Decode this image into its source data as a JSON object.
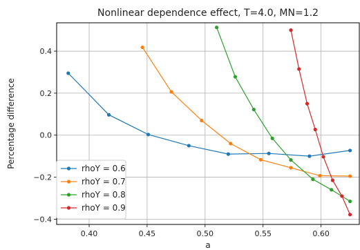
{
  "chart_data": {
    "type": "line",
    "title": "Nonlinear dependence effect, T=4.0, MN=1.2",
    "xlabel": "a",
    "ylabel": "Percentage difference",
    "xlim": [
      0.372,
      0.633
    ],
    "ylim": [
      -0.425,
      0.535
    ],
    "xticks": [
      0.4,
      0.45,
      0.5,
      0.55,
      0.6
    ],
    "xtick_labels": [
      "0.40",
      "0.45",
      "0.50",
      "0.55",
      "0.60"
    ],
    "yticks": [
      -0.4,
      -0.2,
      0.0,
      0.2,
      0.4
    ],
    "ytick_labels": [
      "−0.4",
      "−0.2",
      "0.0",
      "0.2",
      "0.4"
    ],
    "grid": true,
    "legend_position": "lower-left",
    "series": [
      {
        "name": "rhoY = 0.6",
        "color": "#1f77b4",
        "x": [
          0.382,
          0.417,
          0.451,
          0.486,
          0.52,
          0.555,
          0.59,
          0.625
        ],
        "y": [
          0.295,
          0.097,
          0.003,
          -0.05,
          -0.09,
          -0.087,
          -0.1,
          -0.073
        ]
      },
      {
        "name": "rhoY = 0.7",
        "color": "#ff7f0e",
        "x": [
          0.446,
          0.471,
          0.497,
          0.522,
          0.548,
          0.574,
          0.599,
          0.625
        ],
        "y": [
          0.418,
          0.206,
          0.07,
          -0.04,
          -0.117,
          -0.155,
          -0.193,
          -0.195
        ]
      },
      {
        "name": "rhoY = 0.8",
        "color": "#2ca02c",
        "x": [
          0.51,
          0.526,
          0.542,
          0.558,
          0.574,
          0.593,
          0.609,
          0.625
        ],
        "y": [
          0.513,
          0.278,
          0.122,
          -0.015,
          -0.118,
          -0.21,
          -0.26,
          -0.315
        ]
      },
      {
        "name": "rhoY = 0.9",
        "color": "#d62728",
        "x": [
          0.574,
          0.581,
          0.588,
          0.595,
          0.602,
          0.61,
          0.618,
          0.625
        ],
        "y": [
          0.5,
          0.315,
          0.15,
          0.027,
          -0.103,
          -0.215,
          -0.29,
          -0.378
        ]
      }
    ]
  }
}
